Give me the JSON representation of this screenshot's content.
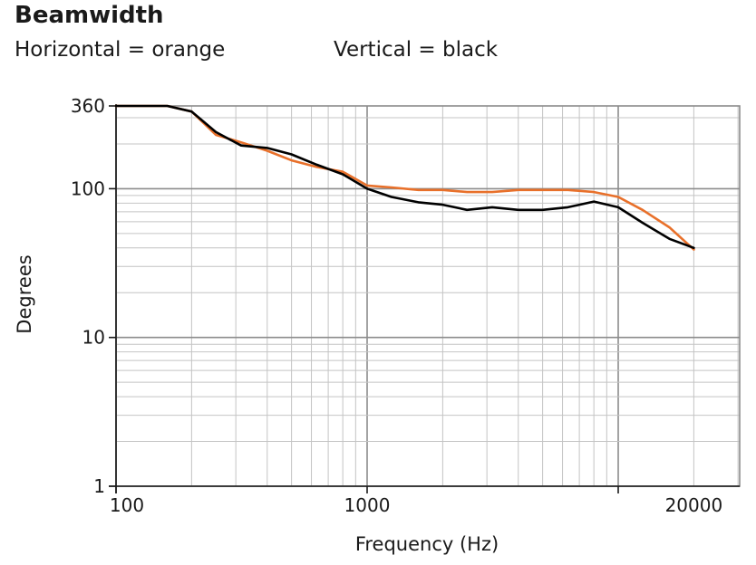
{
  "chart_data": {
    "type": "line",
    "title": "Beamwidth",
    "legend": [
      "Horizontal = orange",
      "Vertical = black"
    ],
    "xlabel": "Frequency (Hz)",
    "ylabel": "Degrees",
    "xscale": "log",
    "yscale": "log",
    "xlim": [
      100,
      20000
    ],
    "ylim": [
      1,
      360
    ],
    "x_ticks": [
      {
        "value": 100,
        "label": "100"
      },
      {
        "value": 1000,
        "label": "1000"
      },
      {
        "value": 20000,
        "label": "20000"
      }
    ],
    "y_ticks": [
      {
        "value": 1,
        "label": "1"
      },
      {
        "value": 10,
        "label": "10"
      },
      {
        "value": 100,
        "label": "100"
      },
      {
        "value": 360,
        "label": "360"
      }
    ],
    "grid": true,
    "series": [
      {
        "name": "Horizontal",
        "color": "#e8702a",
        "x": [
          100,
          125,
          160,
          200,
          250,
          315,
          400,
          500,
          630,
          800,
          1000,
          1250,
          1600,
          2000,
          2500,
          3150,
          4000,
          5000,
          6300,
          8000,
          10000,
          12500,
          16000,
          20000
        ],
        "y": [
          360,
          360,
          360,
          330,
          230,
          205,
          180,
          155,
          140,
          130,
          105,
          102,
          98,
          98,
          95,
          95,
          98,
          98,
          98,
          95,
          88,
          72,
          55,
          39
        ]
      },
      {
        "name": "Vertical",
        "color": "#000000",
        "x": [
          100,
          125,
          160,
          200,
          250,
          315,
          400,
          500,
          630,
          800,
          1000,
          1250,
          1600,
          2000,
          2500,
          3150,
          4000,
          5000,
          6300,
          8000,
          10000,
          12500,
          16000,
          20000
        ],
        "y": [
          360,
          360,
          360,
          330,
          240,
          195,
          188,
          170,
          145,
          125,
          100,
          88,
          81,
          78,
          72,
          75,
          72,
          72,
          75,
          82,
          75,
          59,
          46,
          40
        ]
      }
    ]
  }
}
